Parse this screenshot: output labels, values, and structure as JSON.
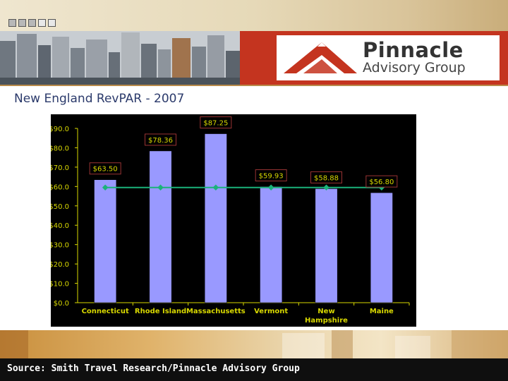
{
  "logo": {
    "name": "Pinnacle",
    "subtitle": "Advisory Group"
  },
  "slide": {
    "title": "New England RevPAR - 2007"
  },
  "footer": {
    "source": "Source: Smith Travel Research/Pinnacle Advisory Group"
  },
  "colors": {
    "bar": "#9999ff",
    "line": "#1bb27a",
    "label_text": "#d8d800",
    "label_border": "#993333",
    "banner_red": "#c4341f"
  },
  "chart_data": {
    "type": "bar",
    "categories": [
      "Connecticut",
      "Rhode Island",
      "Massachusetts",
      "Vermont",
      "New Hampshire",
      "Maine"
    ],
    "category_lines": [
      [
        "Connecticut"
      ],
      [
        "Rhode Island"
      ],
      [
        "Massachusetts"
      ],
      [
        "Vermont"
      ],
      [
        "New",
        "Hampshire"
      ],
      [
        "Maine"
      ]
    ],
    "series": [
      {
        "type": "bar",
        "values": [
          63.5,
          78.36,
          87.25,
          59.93,
          58.88,
          56.8
        ],
        "labels": [
          "$63.50",
          "$78.36",
          "$87.25",
          "$59.93",
          "$58.88",
          "$56.80"
        ]
      },
      {
        "type": "line",
        "values": [
          59.5,
          59.5,
          59.5,
          59.5,
          59.5,
          59.5
        ]
      }
    ],
    "yticks": [
      "$0.0",
      "$10.0",
      "$20.0",
      "$30.0",
      "$40.0",
      "$50.0",
      "$60.0",
      "$70.0",
      "$80.0",
      "$90.0"
    ],
    "ylim": [
      0,
      90
    ],
    "grid": false,
    "legend": "none"
  }
}
